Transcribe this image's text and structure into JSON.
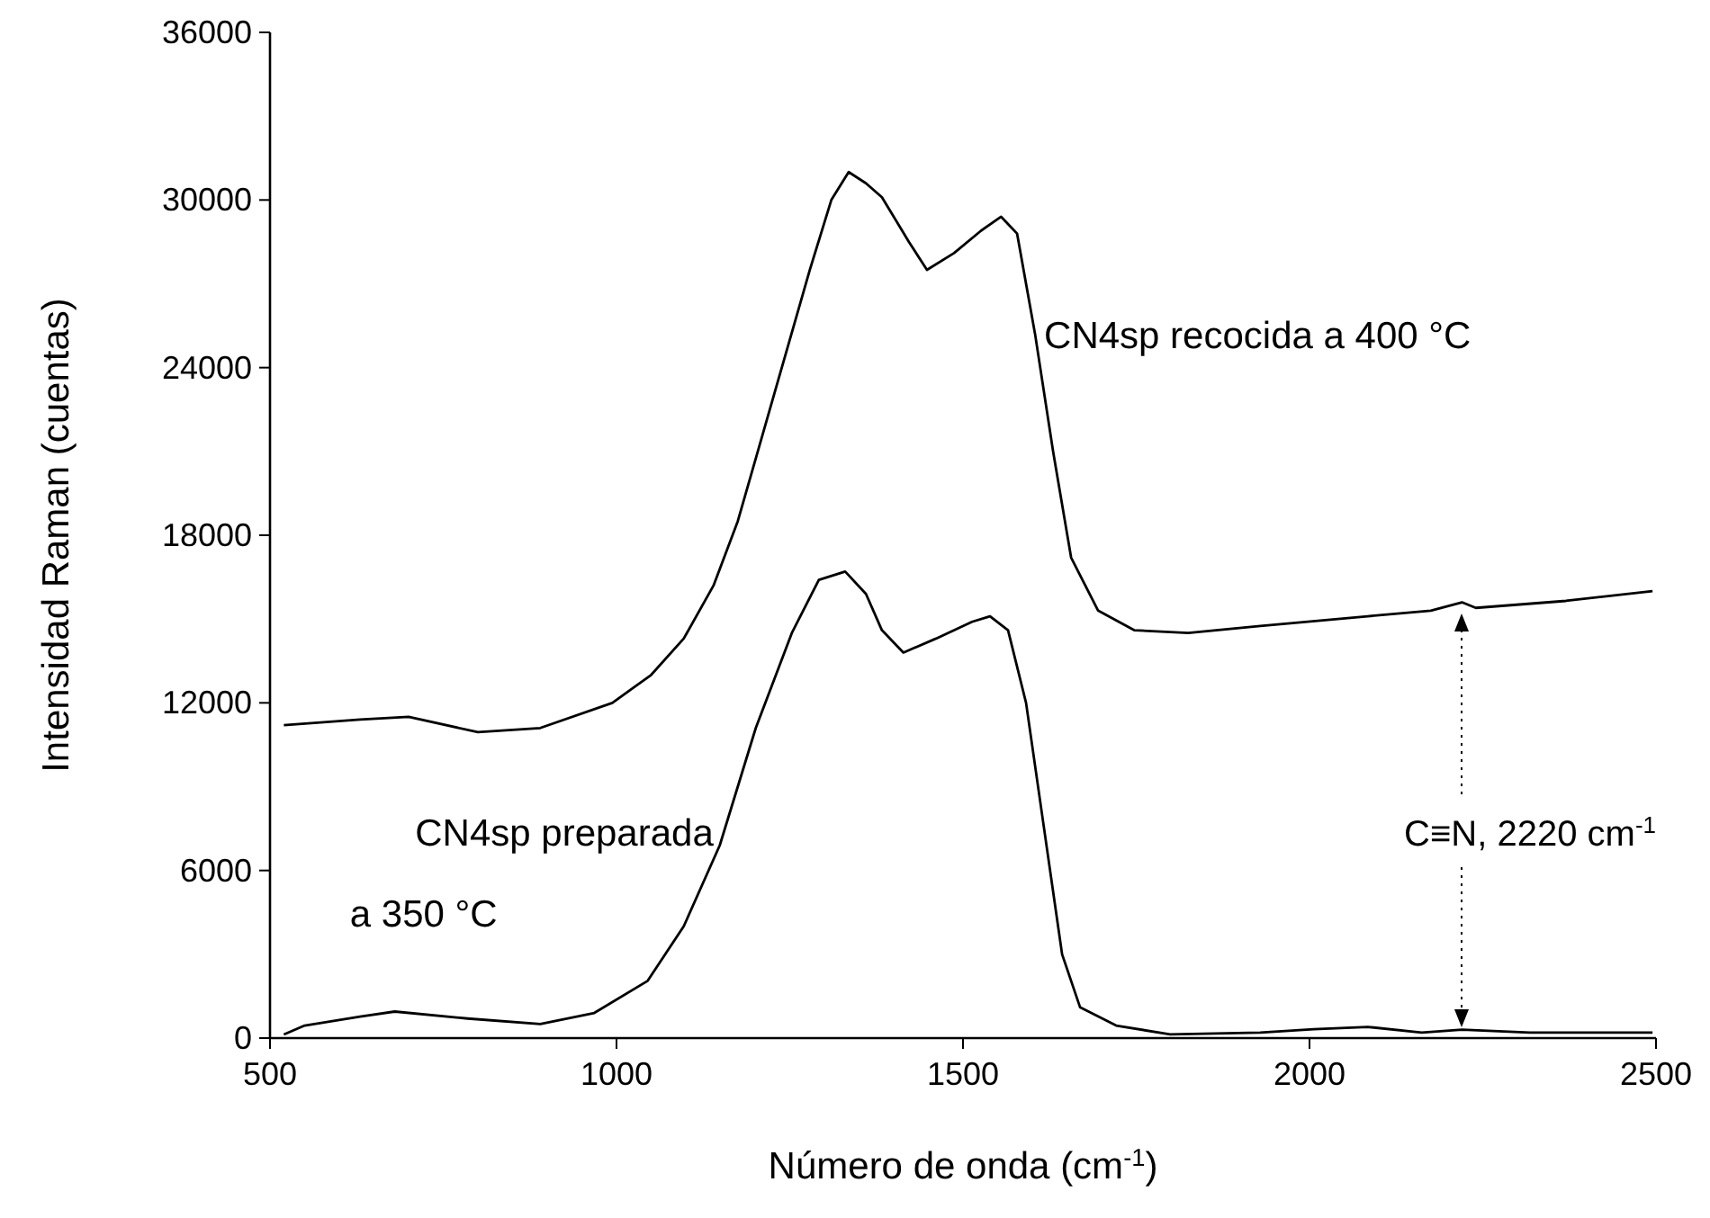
{
  "chart_data": {
    "type": "line",
    "xlabel": "Número de onda (cm$^{-1}$)",
    "ylabel": "Intensidad Raman (cuentas)",
    "xlim": [
      500,
      2500
    ],
    "ylim": [
      0,
      36000
    ],
    "xticks": [
      500,
      1000,
      1500,
      2000,
      2500
    ],
    "yticks": [
      0,
      6000,
      12000,
      18000,
      24000,
      30000,
      36000
    ],
    "grid": false,
    "legend": false,
    "marker": "none",
    "line_style": "solid",
    "series": [
      {
        "name": "CN4sp recocida a 400 °C",
        "color": "#000000",
        "x": [
          520,
          630,
          700,
          800,
          890,
          994,
          1050,
          1097,
          1140,
          1175,
          1227,
          1279,
          1310,
          1335,
          1360,
          1383,
          1422,
          1448,
          1487,
          1526,
          1555,
          1578,
          1604,
          1630,
          1656,
          1695,
          1747,
          1825,
          1929,
          2084,
          2175,
          2220,
          2240,
          2370,
          2495
        ],
        "values": [
          11200,
          11400,
          11500,
          10950,
          11100,
          12000,
          13000,
          14300,
          16200,
          18500,
          23000,
          27500,
          30000,
          31000,
          30600,
          30100,
          28500,
          27500,
          28100,
          28900,
          29400,
          28800,
          25200,
          21000,
          17200,
          15300,
          14600,
          14500,
          14750,
          15100,
          15300,
          15600,
          15400,
          15650,
          16000
        ]
      },
      {
        "name": "CN4sp preparada a 350 °C",
        "color": "#000000",
        "x": [
          520,
          550,
          630,
          680,
          785,
          890,
          968,
          1045,
          1097,
          1149,
          1201,
          1253,
          1292,
          1330,
          1360,
          1383,
          1414,
          1461,
          1513,
          1539,
          1565,
          1591,
          1617,
          1643,
          1669,
          1721,
          1799,
          1929,
          2006,
          2084,
          2162,
          2220,
          2318,
          2495
        ],
        "values": [
          130,
          450,
          770,
          950,
          700,
          500,
          900,
          2050,
          4000,
          6900,
          11100,
          14500,
          16400,
          16700,
          15900,
          14600,
          13800,
          14300,
          14900,
          15100,
          14600,
          12000,
          7500,
          3000,
          1100,
          450,
          130,
          200,
          320,
          400,
          200,
          300,
          200,
          200
        ]
      }
    ],
    "annotations": [
      "C≡N, 2220 cm$^{-1}$"
    ]
  }
}
